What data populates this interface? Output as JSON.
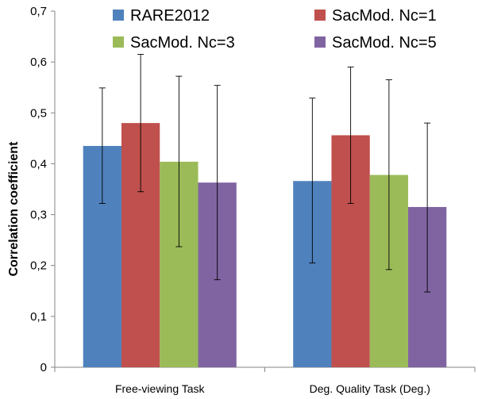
{
  "chart_data": {
    "type": "bar",
    "title": "",
    "xlabel": "",
    "ylabel": "Correlation coefficient",
    "ylim": [
      0,
      0.7
    ],
    "yticks": [
      0,
      0.1,
      0.2,
      0.3,
      0.4,
      0.5,
      0.6,
      0.7
    ],
    "ytick_labels": [
      "0",
      "0,1",
      "0,2",
      "0,3",
      "0,4",
      "0,5",
      "0,6",
      "0,7"
    ],
    "grid": false,
    "legend_position": "top",
    "categories": [
      "Free-viewing Task",
      "Deg. Quality Task (Deg.)"
    ],
    "series": [
      {
        "name": "RARE2012",
        "color": "#4f81bd",
        "values": [
          0.435,
          0.366
        ],
        "err_low": [
          0.322,
          0.205
        ],
        "err_high": [
          0.549,
          0.529
        ]
      },
      {
        "name": "SacMod. Nc=1",
        "color": "#c0504d",
        "values": [
          0.48,
          0.456
        ],
        "err_low": [
          0.345,
          0.322
        ],
        "err_high": [
          0.615,
          0.59
        ]
      },
      {
        "name": "SacMod. Nc=3",
        "color": "#9bbb59",
        "values": [
          0.404,
          0.378
        ],
        "err_low": [
          0.237,
          0.192
        ],
        "err_high": [
          0.572,
          0.565
        ]
      },
      {
        "name": "SacMod. Nc=5",
        "color": "#8064a2",
        "values": [
          0.363,
          0.315
        ],
        "err_low": [
          0.172,
          0.148
        ],
        "err_high": [
          0.554,
          0.48
        ]
      }
    ]
  }
}
